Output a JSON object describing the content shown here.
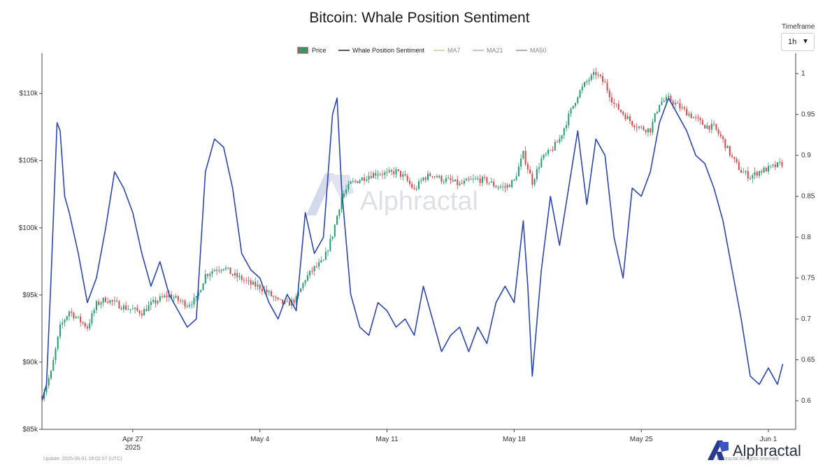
{
  "title": "Bitcoin: Whale Position Sentiment",
  "timeframe": {
    "label": "Timeframe",
    "value": "1h"
  },
  "footer": {
    "update": "Update: 2025-06-01 19:02:07 (UTC)",
    "rights": "© Alphractal All rights reserved"
  },
  "watermark": "Alphractal",
  "brand": "Alphractal",
  "colors": {
    "up": "#1f9e6e",
    "down": "#d9464a",
    "sentiment": "#2b46b0",
    "ma7": "#d9c98a",
    "ma21": "#c9a3a3",
    "ma50": "#8a8fb8"
  },
  "chart_data": {
    "type": "line",
    "title": "Bitcoin: Whale Position Sentiment",
    "x_ticks": [
      {
        "label": "Apr 27",
        "sub": "2025",
        "date": "2025-04-27"
      },
      {
        "label": "May 4",
        "sub": "",
        "date": "2025-05-04"
      },
      {
        "label": "May 11",
        "sub": "",
        "date": "2025-05-11"
      },
      {
        "label": "May 18",
        "sub": "",
        "date": "2025-05-18"
      },
      {
        "label": "May 25",
        "sub": "",
        "date": "2025-05-25"
      },
      {
        "label": "Jun 1",
        "sub": "",
        "date": "2025-06-01"
      }
    ],
    "xlim": [
      "2025-04-22",
      "2025-06-02T12:00"
    ],
    "y_left": {
      "ylim": [
        85000,
        113000
      ],
      "ticks": [
        {
          "value": 85000,
          "label": "$85k"
        },
        {
          "value": 90000,
          "label": "$90k"
        },
        {
          "value": 95000,
          "label": "$95k"
        },
        {
          "value": 100000,
          "label": "$100k"
        },
        {
          "value": 105000,
          "label": "$105k"
        },
        {
          "value": 110000,
          "label": "$110k"
        }
      ]
    },
    "y_right": {
      "ylim": [
        0.565,
        1.025
      ],
      "ticks": [
        {
          "value": 0.6,
          "label": "0.6"
        },
        {
          "value": 0.65,
          "label": "0.65"
        },
        {
          "value": 0.7,
          "label": "0.7"
        },
        {
          "value": 0.75,
          "label": "0.75"
        },
        {
          "value": 0.8,
          "label": "0.8"
        },
        {
          "value": 0.85,
          "label": "0.85"
        },
        {
          "value": 0.9,
          "label": "0.9"
        },
        {
          "value": 0.95,
          "label": "0.95"
        },
        {
          "value": 1,
          "label": "1"
        }
      ]
    },
    "grid": false,
    "legend_position": "top-center",
    "legend": [
      "Price",
      "Whale Position Sentiment",
      "MA7",
      "MA21",
      "MA50"
    ],
    "series": [
      {
        "name": "Price",
        "axis": "left",
        "points": [
          [
            "2025-04-22",
            87500
          ],
          [
            "2025-04-22T12:00",
            89200
          ],
          [
            "2025-04-23",
            92600
          ],
          [
            "2025-04-23T12:00",
            93800
          ],
          [
            "2025-04-24",
            93200
          ],
          [
            "2025-04-24T12:00",
            92600
          ],
          [
            "2025-04-25",
            94300
          ],
          [
            "2025-04-25T12:00",
            94700
          ],
          [
            "2025-04-26",
            94400
          ],
          [
            "2025-04-26T12:00",
            94100
          ],
          [
            "2025-04-27",
            93900
          ],
          [
            "2025-04-27T12:00",
            93700
          ],
          [
            "2025-04-28",
            94300
          ],
          [
            "2025-04-28T12:00",
            94700
          ],
          [
            "2025-04-29",
            95000
          ],
          [
            "2025-04-29T12:00",
            94600
          ],
          [
            "2025-04-30",
            94300
          ],
          [
            "2025-04-30T12:00",
            94700
          ],
          [
            "2025-05-01",
            96500
          ],
          [
            "2025-05-01T12:00",
            96900
          ],
          [
            "2025-05-02",
            97100
          ],
          [
            "2025-05-02T12:00",
            96500
          ],
          [
            "2025-05-03",
            96200
          ],
          [
            "2025-05-03T12:00",
            95800
          ],
          [
            "2025-05-04",
            95600
          ],
          [
            "2025-05-04T12:00",
            95100
          ],
          [
            "2025-05-05",
            94500
          ],
          [
            "2025-05-05T12:00",
            94300
          ],
          [
            "2025-05-06",
            94700
          ],
          [
            "2025-05-06T12:00",
            96200
          ],
          [
            "2025-05-07",
            97000
          ],
          [
            "2025-05-07T12:00",
            97500
          ],
          [
            "2025-05-08",
            99500
          ],
          [
            "2025-05-08T12:00",
            102300
          ],
          [
            "2025-05-09",
            103300
          ],
          [
            "2025-05-09T12:00",
            103600
          ],
          [
            "2025-05-10",
            103900
          ],
          [
            "2025-05-10T12:00",
            104100
          ],
          [
            "2025-05-11",
            104000
          ],
          [
            "2025-05-11T12:00",
            104200
          ],
          [
            "2025-05-12",
            103700
          ],
          [
            "2025-05-12T12:00",
            102800
          ],
          [
            "2025-05-13",
            103700
          ],
          [
            "2025-05-13T12:00",
            104000
          ],
          [
            "2025-05-14",
            103600
          ],
          [
            "2025-05-14T12:00",
            103500
          ],
          [
            "2025-05-15",
            103200
          ],
          [
            "2025-05-15T12:00",
            103500
          ],
          [
            "2025-05-16",
            103600
          ],
          [
            "2025-05-16T12:00",
            103500
          ],
          [
            "2025-05-17",
            103100
          ],
          [
            "2025-05-17T12:00",
            103000
          ],
          [
            "2025-05-18",
            103500
          ],
          [
            "2025-05-18T12:00",
            105500
          ],
          [
            "2025-05-19",
            103400
          ],
          [
            "2025-05-19T12:00",
            105100
          ],
          [
            "2025-05-20",
            105700
          ],
          [
            "2025-05-20T12:00",
            106600
          ],
          [
            "2025-05-21",
            108300
          ],
          [
            "2025-05-21T12:00",
            109900
          ],
          [
            "2025-05-22",
            110900
          ],
          [
            "2025-05-22T12:00",
            111500
          ],
          [
            "2025-05-23",
            110700
          ],
          [
            "2025-05-23T12:00",
            109200
          ],
          [
            "2025-05-24",
            108500
          ],
          [
            "2025-05-24T12:00",
            107800
          ],
          [
            "2025-05-25",
            107400
          ],
          [
            "2025-05-25T12:00",
            107300
          ],
          [
            "2025-05-26",
            109300
          ],
          [
            "2025-05-26T12:00",
            109600
          ],
          [
            "2025-05-27",
            109100
          ],
          [
            "2025-05-27T12:00",
            108600
          ],
          [
            "2025-05-28",
            108100
          ],
          [
            "2025-05-28T12:00",
            107600
          ],
          [
            "2025-05-29",
            107500
          ],
          [
            "2025-05-29T12:00",
            106500
          ],
          [
            "2025-05-30",
            105200
          ],
          [
            "2025-05-30T12:00",
            104200
          ],
          [
            "2025-05-31",
            103800
          ],
          [
            "2025-05-31T12:00",
            104200
          ],
          [
            "2025-06-01",
            104400
          ],
          [
            "2025-06-01T19:00",
            104800
          ]
        ]
      },
      {
        "name": "Whale Position Sentiment",
        "axis": "right",
        "points": [
          [
            "2025-04-22",
            0.6
          ],
          [
            "2025-04-22T06:00",
            0.62
          ],
          [
            "2025-04-22T12:00",
            0.75
          ],
          [
            "2025-04-22T20:00",
            0.94
          ],
          [
            "2025-04-23",
            0.93
          ],
          [
            "2025-04-23T06:00",
            0.85
          ],
          [
            "2025-04-23T12:00",
            0.83
          ],
          [
            "2025-04-24",
            0.78
          ],
          [
            "2025-04-24T12:00",
            0.72
          ],
          [
            "2025-04-25",
            0.75
          ],
          [
            "2025-04-25T12:00",
            0.81
          ],
          [
            "2025-04-26",
            0.88
          ],
          [
            "2025-04-26T12:00",
            0.86
          ],
          [
            "2025-04-27",
            0.83
          ],
          [
            "2025-04-27T12:00",
            0.78
          ],
          [
            "2025-04-28",
            0.74
          ],
          [
            "2025-04-28T12:00",
            0.77
          ],
          [
            "2025-04-29",
            0.73
          ],
          [
            "2025-04-29T12:00",
            0.71
          ],
          [
            "2025-04-30",
            0.69
          ],
          [
            "2025-04-30T12:00",
            0.7
          ],
          [
            "2025-05-01",
            0.88
          ],
          [
            "2025-05-01T12:00",
            0.92
          ],
          [
            "2025-05-02",
            0.91
          ],
          [
            "2025-05-02T12:00",
            0.86
          ],
          [
            "2025-05-03",
            0.78
          ],
          [
            "2025-05-03T12:00",
            0.76
          ],
          [
            "2025-05-04",
            0.75
          ],
          [
            "2025-05-04T12:00",
            0.72
          ],
          [
            "2025-05-05",
            0.7
          ],
          [
            "2025-05-05T12:00",
            0.73
          ],
          [
            "2025-05-06",
            0.71
          ],
          [
            "2025-05-06T12:00",
            0.83
          ],
          [
            "2025-05-07",
            0.78
          ],
          [
            "2025-05-07T12:00",
            0.8
          ],
          [
            "2025-05-08",
            0.95
          ],
          [
            "2025-05-08T06:00",
            0.97
          ],
          [
            "2025-05-08T12:00",
            0.86
          ],
          [
            "2025-05-09",
            0.73
          ],
          [
            "2025-05-09T12:00",
            0.69
          ],
          [
            "2025-05-10",
            0.68
          ],
          [
            "2025-05-10T12:00",
            0.72
          ],
          [
            "2025-05-11",
            0.71
          ],
          [
            "2025-05-11T12:00",
            0.69
          ],
          [
            "2025-05-12",
            0.7
          ],
          [
            "2025-05-12T12:00",
            0.68
          ],
          [
            "2025-05-13",
            0.74
          ],
          [
            "2025-05-13T12:00",
            0.7
          ],
          [
            "2025-05-14",
            0.66
          ],
          [
            "2025-05-14T12:00",
            0.68
          ],
          [
            "2025-05-15",
            0.69
          ],
          [
            "2025-05-15T12:00",
            0.66
          ],
          [
            "2025-05-16",
            0.69
          ],
          [
            "2025-05-16T12:00",
            0.67
          ],
          [
            "2025-05-17",
            0.72
          ],
          [
            "2025-05-17T12:00",
            0.74
          ],
          [
            "2025-05-18",
            0.72
          ],
          [
            "2025-05-18T12:00",
            0.82
          ],
          [
            "2025-05-18T18:00",
            0.74
          ],
          [
            "2025-05-19",
            0.63
          ],
          [
            "2025-05-19T12:00",
            0.76
          ],
          [
            "2025-05-20",
            0.85
          ],
          [
            "2025-05-20T12:00",
            0.79
          ],
          [
            "2025-05-21",
            0.86
          ],
          [
            "2025-05-21T12:00",
            0.93
          ],
          [
            "2025-05-22",
            0.84
          ],
          [
            "2025-05-22T12:00",
            0.92
          ],
          [
            "2025-05-23",
            0.9
          ],
          [
            "2025-05-23T12:00",
            0.8
          ],
          [
            "2025-05-24",
            0.75
          ],
          [
            "2025-05-24T12:00",
            0.86
          ],
          [
            "2025-05-25",
            0.85
          ],
          [
            "2025-05-25T12:00",
            0.88
          ],
          [
            "2025-05-26",
            0.94
          ],
          [
            "2025-05-26T12:00",
            0.97
          ],
          [
            "2025-05-27",
            0.95
          ],
          [
            "2025-05-27T12:00",
            0.93
          ],
          [
            "2025-05-28",
            0.9
          ],
          [
            "2025-05-28T12:00",
            0.89
          ],
          [
            "2025-05-29",
            0.86
          ],
          [
            "2025-05-29T12:00",
            0.82
          ],
          [
            "2025-05-30",
            0.76
          ],
          [
            "2025-05-30T12:00",
            0.7
          ],
          [
            "2025-05-31",
            0.63
          ],
          [
            "2025-05-31T12:00",
            0.62
          ],
          [
            "2025-06-01",
            0.64
          ],
          [
            "2025-06-01T12:00",
            0.62
          ],
          [
            "2025-06-01T19:00",
            0.645
          ]
        ]
      }
    ]
  }
}
